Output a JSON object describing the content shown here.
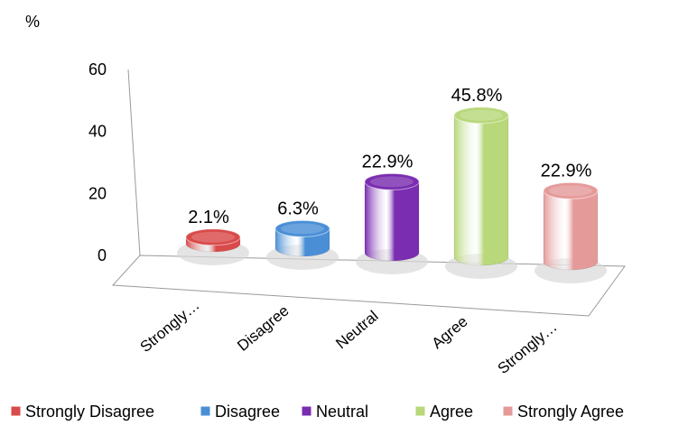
{
  "chart_data": {
    "type": "bar",
    "style": "3d-cylinder",
    "ylabel": "%",
    "ylim": [
      0,
      60
    ],
    "yticks": [
      0,
      20,
      40,
      60
    ],
    "grid": false,
    "legend_position": "bottom",
    "categories": [
      "Strongly Disagree",
      "Disagree",
      "Neutral",
      "Agree",
      "Strongly Agree"
    ],
    "category_tick_labels": [
      "Strongly…",
      "Disagree",
      "Neutral",
      "Agree",
      "Strongly…"
    ],
    "values": [
      2.1,
      6.3,
      22.9,
      45.8,
      22.9
    ],
    "data_labels": [
      "2.1%",
      "6.3%",
      "22.9%",
      "45.8%",
      "22.9%"
    ],
    "colors": [
      "#d94a4a",
      "#4a8fd6",
      "#7a2db0",
      "#b8d87a",
      "#e59a9a"
    ],
    "legend": [
      "Strongly Disagree",
      "Disagree",
      "Neutral",
      "Agree",
      "Strongly Agree"
    ]
  }
}
